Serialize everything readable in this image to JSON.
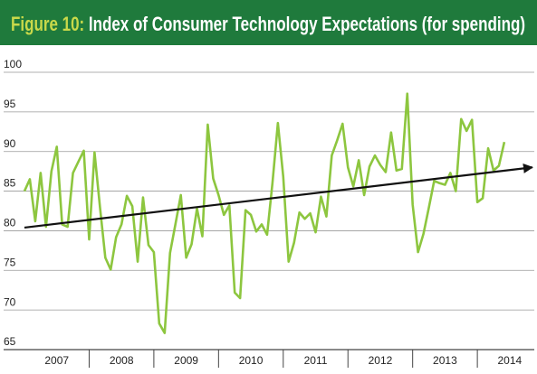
{
  "chart_data": {
    "type": "line",
    "title_prefix": "Figure 10:",
    "title": "Index of Consumer Technology Expectations (for spending)",
    "x": [
      2007.0,
      2007.083,
      2007.167,
      2007.25,
      2007.333,
      2007.417,
      2007.5,
      2007.583,
      2007.667,
      2007.75,
      2007.833,
      2007.917,
      2008.0,
      2008.083,
      2008.167,
      2008.25,
      2008.333,
      2008.417,
      2008.5,
      2008.583,
      2008.667,
      2008.75,
      2008.833,
      2008.917,
      2009.0,
      2009.083,
      2009.167,
      2009.25,
      2009.333,
      2009.417,
      2009.5,
      2009.583,
      2009.667,
      2009.75,
      2009.833,
      2009.917,
      2010.0,
      2010.083,
      2010.167,
      2010.25,
      2010.333,
      2010.417,
      2010.5,
      2010.583,
      2010.667,
      2010.75,
      2010.833,
      2010.917,
      2011.0,
      2011.083,
      2011.167,
      2011.25,
      2011.333,
      2011.417,
      2011.5,
      2011.583,
      2011.667,
      2011.75,
      2011.833,
      2011.917,
      2012.0,
      2012.083,
      2012.167,
      2012.25,
      2012.333,
      2012.417,
      2012.5,
      2012.583,
      2012.667,
      2012.75,
      2012.833,
      2012.917,
      2013.0,
      2013.083,
      2013.167,
      2013.25,
      2013.333,
      2013.417,
      2013.5,
      2013.583,
      2013.667,
      2013.75,
      2013.833,
      2013.917,
      2014.0,
      2014.083,
      2014.167,
      2014.25,
      2014.333,
      2014.417
    ],
    "series": [
      {
        "name": "Index",
        "color": "#8dc63f",
        "values": [
          85,
          86.5,
          81.2,
          87.3,
          80.5,
          87.5,
          90.6,
          80.8,
          80.5,
          87.3,
          88.7,
          90.1,
          78.9,
          89.9,
          83,
          76.6,
          75.1,
          79.2,
          80.8,
          84.4,
          83.1,
          76.1,
          84.2,
          78.2,
          77.3,
          68.3,
          67.1,
          77.2,
          80.8,
          84.5,
          76.6,
          78.3,
          82.8,
          79.3,
          93.4,
          86.6,
          84.5,
          82,
          83.2,
          72.2,
          71.5,
          82.6,
          82,
          79.9,
          80.8,
          79.5,
          86,
          93.6,
          86.8,
          76.1,
          78.5,
          82.3,
          81.5,
          82.2,
          79.8,
          84.3,
          81.8,
          89.5,
          91.4,
          93.5,
          88,
          85.6,
          88.9,
          84.5,
          88.1,
          89.5,
          88.3,
          87.4,
          92.4,
          87.6,
          87.8,
          97.3,
          83.3,
          77.3,
          79.6,
          82.9,
          86.3,
          86,
          85.8,
          87.3,
          85,
          94.1,
          92.6,
          94,
          83.6,
          84.1,
          90.4,
          87.6,
          88.2,
          91.2
        ]
      }
    ],
    "trend": {
      "color": "#111111",
      "x": [
        2007.0,
        2014.85
      ],
      "values": [
        80.4,
        88.0
      ]
    },
    "xlim": [
      2006.93,
      2014.88
    ],
    "xticks": [
      {
        "value": 2007.5,
        "label": "2007"
      },
      {
        "value": 2008.5,
        "label": "2008"
      },
      {
        "value": 2009.5,
        "label": "2009"
      },
      {
        "value": 2010.5,
        "label": "2010"
      },
      {
        "value": 2011.5,
        "label": "2011"
      },
      {
        "value": 2012.5,
        "label": "2012"
      },
      {
        "value": 2013.5,
        "label": "2013"
      },
      {
        "value": 2014.5,
        "label": "2014"
      }
    ],
    "xticks_minor": [
      2008,
      2009,
      2010,
      2011,
      2012,
      2013,
      2014
    ],
    "ylim": [
      65,
      100
    ],
    "yticks": [
      65,
      70,
      75,
      80,
      85,
      90,
      95,
      100
    ],
    "grid": true
  }
}
